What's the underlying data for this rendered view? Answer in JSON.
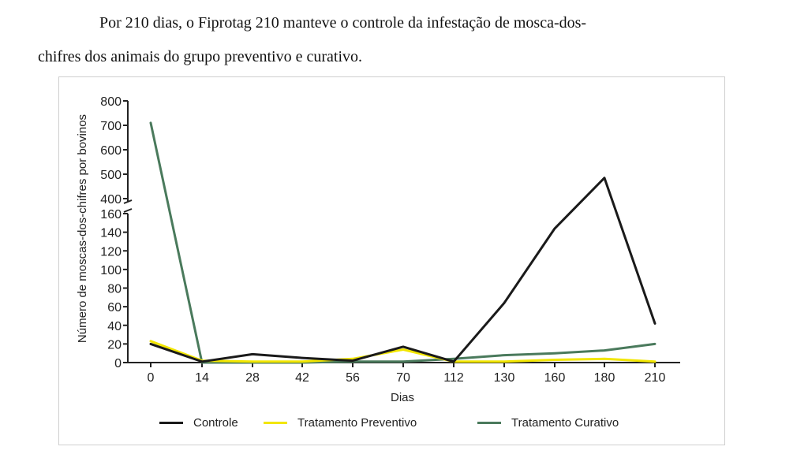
{
  "paragraph": {
    "line1": "Por 210 dias, o Fiprotag 210 manteve o controle da infestação de mosca-dos-",
    "line2": "chifres dos animais do grupo preventivo e curativo."
  },
  "chart_data": {
    "type": "line",
    "xlabel": "Dias",
    "ylabel": "Número de moscas-dos-chifres por bovinos",
    "categories": [
      "0",
      "14",
      "28",
      "42",
      "56",
      "70",
      "112",
      "130",
      "160",
      "180",
      "210"
    ],
    "y_axis_break": {
      "lower_range": [
        0,
        160
      ],
      "upper_range": [
        400,
        800
      ]
    },
    "y_ticks_lower": [
      0,
      20,
      40,
      60,
      80,
      100,
      120,
      140,
      160
    ],
    "y_ticks_upper": [
      400,
      500,
      600,
      700,
      800
    ],
    "series": [
      {
        "name": "Controle",
        "color": "#1a1a1a",
        "values": [
          20,
          1,
          9,
          5,
          2,
          17,
          1,
          64,
          144,
          485,
          42
        ]
      },
      {
        "name": "Tratamento Preventivo",
        "color": "#f2e600",
        "values": [
          23,
          2,
          1,
          1,
          4,
          14,
          1,
          1,
          3,
          4,
          1
        ]
      },
      {
        "name": "Tratamento Curativo",
        "color": "#4a7a5c",
        "values": [
          710,
          0,
          0,
          0,
          1,
          1,
          4,
          8,
          10,
          13,
          20
        ]
      }
    ],
    "legend_position": "bottom"
  }
}
